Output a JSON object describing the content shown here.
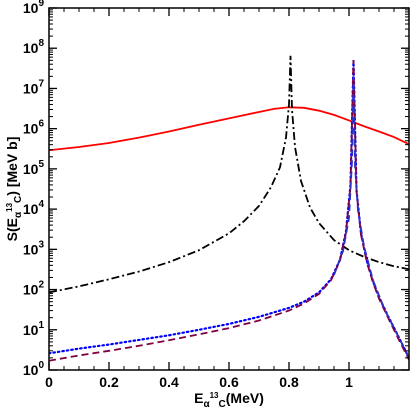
{
  "chart_data": {
    "type": "line",
    "title": "",
    "xlabel": {
      "main": "E",
      "sub1": "α",
      "sup": "13",
      "sub2": "C",
      "tail": "(MeV)"
    },
    "ylabel": {
      "main": "S(E",
      "sub1": "α",
      "sup": "13",
      "sub2": "C",
      "tail": ") [MeV b]"
    },
    "xlim": [
      0,
      1.2
    ],
    "ylim_log10": [
      0,
      9
    ],
    "log_y": true,
    "grid": false,
    "x_ticks": [
      "0",
      "0.2",
      "0.4",
      "0.6",
      "0.8",
      "1"
    ],
    "x_tick_values": [
      0,
      0.2,
      0.4,
      0.6,
      0.8,
      1.0
    ],
    "y_tick_exponents": [
      0,
      1,
      2,
      3,
      4,
      5,
      6,
      7,
      8,
      9
    ],
    "y_tick_base": "10",
    "series": [
      {
        "color": "#ff0000",
        "dash": "solid",
        "points": [
          [
            0.0,
            290000.0
          ],
          [
            0.1,
            350000.0
          ],
          [
            0.2,
            440000.0
          ],
          [
            0.3,
            600000.0
          ],
          [
            0.4,
            850000.0
          ],
          [
            0.5,
            1250000.0
          ],
          [
            0.6,
            1800000.0
          ],
          [
            0.7,
            2600000.0
          ],
          [
            0.75,
            3100000.0
          ],
          [
            0.8,
            3400000.0
          ],
          [
            0.85,
            3300000.0
          ],
          [
            0.9,
            2800000.0
          ],
          [
            0.95,
            2200000.0
          ],
          [
            1.0,
            1600000.0
          ],
          [
            1.05,
            1150000.0
          ],
          [
            1.1,
            850000.0
          ],
          [
            1.15,
            620000.0
          ],
          [
            1.2,
            410000.0
          ]
        ]
      },
      {
        "color": "#000000",
        "dash": "dashdot",
        "points": [
          [
            0.0,
            85
          ],
          [
            0.1,
            120
          ],
          [
            0.2,
            180
          ],
          [
            0.3,
            280
          ],
          [
            0.4,
            480
          ],
          [
            0.5,
            950
          ],
          [
            0.6,
            2500
          ],
          [
            0.65,
            5000
          ],
          [
            0.7,
            12000.0
          ],
          [
            0.74,
            35000.0
          ],
          [
            0.77,
            110000.0
          ],
          [
            0.79,
            600000.0
          ],
          [
            0.8,
            4000000.0
          ],
          [
            0.805,
            65000000.0
          ],
          [
            0.81,
            3000000.0
          ],
          [
            0.82,
            350000.0
          ],
          [
            0.84,
            50000.0
          ],
          [
            0.87,
            11000.0
          ],
          [
            0.9,
            4500
          ],
          [
            0.95,
            1700
          ],
          [
            1.0,
            950
          ],
          [
            1.05,
            650
          ],
          [
            1.1,
            480
          ],
          [
            1.15,
            380
          ],
          [
            1.2,
            320
          ]
        ]
      },
      {
        "color": "#0000ff",
        "dash": "dotted",
        "points": [
          [
            0.0,
            2.6
          ],
          [
            0.1,
            3.4
          ],
          [
            0.2,
            4.3
          ],
          [
            0.3,
            5.6
          ],
          [
            0.4,
            7.3
          ],
          [
            0.5,
            10
          ],
          [
            0.6,
            14
          ],
          [
            0.7,
            21
          ],
          [
            0.8,
            35
          ],
          [
            0.85,
            50
          ],
          [
            0.9,
            85
          ],
          [
            0.94,
            180
          ],
          [
            0.97,
            550
          ],
          [
            0.99,
            2800
          ],
          [
            1.005,
            40000.0
          ],
          [
            1.015,
            50000000.0
          ],
          [
            1.025,
            30000.0
          ],
          [
            1.04,
            2500
          ],
          [
            1.06,
            500
          ],
          [
            1.08,
            160
          ],
          [
            1.1,
            65
          ],
          [
            1.13,
            22
          ],
          [
            1.16,
            8
          ],
          [
            1.2,
            2
          ]
        ]
      },
      {
        "color": "#800040",
        "dash": "dashed",
        "points": [
          [
            0.0,
            1.7
          ],
          [
            0.1,
            2.3
          ],
          [
            0.2,
            3.0
          ],
          [
            0.3,
            4.0
          ],
          [
            0.4,
            5.5
          ],
          [
            0.5,
            7.7
          ],
          [
            0.6,
            11
          ],
          [
            0.7,
            17
          ],
          [
            0.8,
            30
          ],
          [
            0.85,
            45
          ],
          [
            0.9,
            78
          ],
          [
            0.94,
            170
          ],
          [
            0.97,
            520
          ],
          [
            0.99,
            2600
          ],
          [
            1.005,
            38000.0
          ],
          [
            1.015,
            50000000.0
          ],
          [
            1.025,
            28000.0
          ],
          [
            1.04,
            2300
          ],
          [
            1.06,
            460
          ],
          [
            1.08,
            150
          ],
          [
            1.1,
            60
          ],
          [
            1.13,
            20
          ],
          [
            1.16,
            7
          ],
          [
            1.2,
            1.8
          ]
        ]
      },
      {
        "color": "#3030c0",
        "dash": "dashed",
        "points": [
          [
            0.95,
            230
          ],
          [
            0.98,
            900
          ],
          [
            1.0,
            6000
          ],
          [
            1.01,
            150000.0
          ],
          [
            1.015,
            20000000.0
          ],
          [
            1.02,
            120000.0
          ],
          [
            1.03,
            9000
          ],
          [
            1.05,
            1200
          ],
          [
            1.08,
            170
          ],
          [
            1.12,
            30
          ],
          [
            1.16,
            8
          ],
          [
            1.2,
            2
          ]
        ]
      }
    ]
  }
}
